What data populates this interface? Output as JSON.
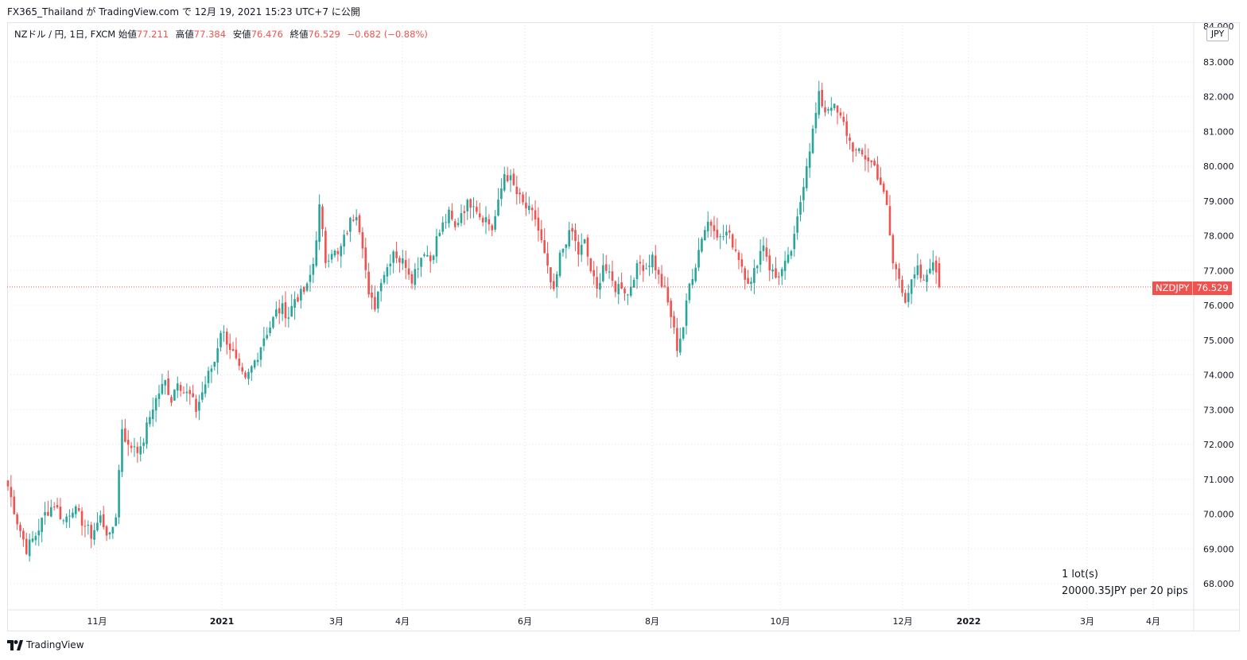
{
  "header": {
    "publisher": "FX365_Thailand",
    "platform": "TradingView.com",
    "date_text": "12月 19, 2021 15:23 UTC+7",
    "particle_ga": "が",
    "particle_de": "で",
    "publish_suffix": "に公開"
  },
  "legend": {
    "symbol_desc": "NZドル / 円, 1日, FXCM",
    "open_label": "始値",
    "open_value": "77.211",
    "high_label": "高値",
    "high_value": "77.384",
    "low_label": "安値",
    "low_value": "76.476",
    "close_label": "終値",
    "close_value": "76.529",
    "change": "−0.682 (−0.88%)"
  },
  "price_scale": {
    "currency": "JPY",
    "top_label_partial": "84.000"
  },
  "price_tag": {
    "symbol": "NZDJPY",
    "value": "76.529"
  },
  "lot_info": {
    "lots": "1 lot(s)",
    "pip_value": "20000.35JPY per 20 pips"
  },
  "footer": {
    "brand": "TradingView"
  },
  "colors": {
    "up": "#26a69a",
    "down": "#ef5350",
    "grid": "#e0e3eb",
    "text": "#131722"
  },
  "chart_data": {
    "type": "candlestick",
    "symbol": "NZDJPY",
    "timeframe": "1D",
    "ylim": [
      67.5,
      84.2
    ],
    "y_ticks": [
      "68.000",
      "69.000",
      "70.000",
      "71.000",
      "72.000",
      "73.000",
      "74.000",
      "75.000",
      "76.000",
      "77.000",
      "78.000",
      "79.000",
      "80.000",
      "81.000",
      "82.000",
      "83.000"
    ],
    "x_ticks": [
      "11月",
      "2021",
      "3月",
      "4月",
      "6月",
      "8月",
      "10月",
      "12月",
      "2022",
      "3月",
      "4月"
    ],
    "last_price": 76.529,
    "close_path": [
      [
        0,
        70.8
      ],
      [
        3,
        69.8
      ],
      [
        6,
        69.0
      ],
      [
        9,
        69.4
      ],
      [
        12,
        70.0
      ],
      [
        15,
        70.3
      ],
      [
        18,
        69.8
      ],
      [
        21,
        70.2
      ],
      [
        24,
        69.8
      ],
      [
        27,
        69.4
      ],
      [
        30,
        69.9
      ],
      [
        33,
        69.3
      ],
      [
        35,
        70.0
      ],
      [
        37,
        72.5
      ],
      [
        39,
        71.9
      ],
      [
        41,
        72.0
      ],
      [
        43,
        71.8
      ],
      [
        45,
        72.5
      ],
      [
        47,
        73.1
      ],
      [
        49,
        73.5
      ],
      [
        51,
        73.8
      ],
      [
        53,
        73.3
      ],
      [
        55,
        73.9
      ],
      [
        57,
        73.5
      ],
      [
        59,
        73.4
      ],
      [
        61,
        73.0
      ],
      [
        63,
        73.5
      ],
      [
        65,
        74.0
      ],
      [
        67,
        74.4
      ],
      [
        69,
        75.3
      ],
      [
        71,
        75.0
      ],
      [
        73,
        74.6
      ],
      [
        75,
        74.1
      ],
      [
        77,
        73.8
      ],
      [
        79,
        74.2
      ],
      [
        81,
        74.6
      ],
      [
        83,
        75.1
      ],
      [
        85,
        75.4
      ],
      [
        87,
        75.8
      ],
      [
        89,
        75.9
      ],
      [
        91,
        75.7
      ],
      [
        93,
        76.2
      ],
      [
        95,
        76.3
      ],
      [
        97,
        76.5
      ],
      [
        99,
        77.2
      ],
      [
        101,
        78.8
      ],
      [
        103,
        77.3
      ],
      [
        105,
        77.6
      ],
      [
        107,
        77.4
      ],
      [
        109,
        77.9
      ],
      [
        111,
        78.4
      ],
      [
        113,
        78.7
      ],
      [
        115,
        77.8
      ],
      [
        117,
        76.2
      ],
      [
        119,
        76.0
      ],
      [
        121,
        76.8
      ],
      [
        123,
        77.1
      ],
      [
        125,
        77.6
      ],
      [
        127,
        77.3
      ],
      [
        129,
        77.2
      ],
      [
        131,
        76.8
      ],
      [
        133,
        77.2
      ],
      [
        135,
        77.6
      ],
      [
        137,
        77.3
      ],
      [
        139,
        77.9
      ],
      [
        141,
        78.3
      ],
      [
        143,
        78.6
      ],
      [
        145,
        78.2
      ],
      [
        147,
        78.7
      ],
      [
        149,
        78.9
      ],
      [
        151,
        79.0
      ],
      [
        153,
        78.6
      ],
      [
        155,
        78.5
      ],
      [
        157,
        78.2
      ],
      [
        159,
        78.9
      ],
      [
        161,
        79.8
      ],
      [
        163,
        79.6
      ],
      [
        165,
        79.2
      ],
      [
        167,
        78.9
      ],
      [
        169,
        78.7
      ],
      [
        171,
        78.5
      ],
      [
        173,
        77.8
      ],
      [
        175,
        77.0
      ],
      [
        177,
        76.3
      ],
      [
        179,
        77.4
      ],
      [
        181,
        77.9
      ],
      [
        183,
        78.1
      ],
      [
        185,
        77.5
      ],
      [
        187,
        77.8
      ],
      [
        189,
        77.0
      ],
      [
        191,
        76.4
      ],
      [
        193,
        77.2
      ],
      [
        195,
        76.8
      ],
      [
        197,
        76.5
      ],
      [
        199,
        76.6
      ],
      [
        201,
        76.3
      ],
      [
        203,
        76.9
      ],
      [
        205,
        77.2
      ],
      [
        207,
        77.1
      ],
      [
        209,
        77.4
      ],
      [
        211,
        76.8
      ],
      [
        213,
        76.4
      ],
      [
        215,
        75.7
      ],
      [
        217,
        74.8
      ],
      [
        219,
        75.4
      ],
      [
        221,
        76.6
      ],
      [
        223,
        77.2
      ],
      [
        225,
        78.0
      ],
      [
        227,
        78.4
      ],
      [
        229,
        78.3
      ],
      [
        231,
        77.9
      ],
      [
        233,
        78.1
      ],
      [
        235,
        77.8
      ],
      [
        237,
        77.4
      ],
      [
        239,
        76.9
      ],
      [
        241,
        76.6
      ],
      [
        243,
        77.3
      ],
      [
        245,
        77.8
      ],
      [
        247,
        77.1
      ],
      [
        249,
        76.8
      ],
      [
        251,
        77.0
      ],
      [
        253,
        77.3
      ],
      [
        255,
        77.9
      ],
      [
        257,
        79.0
      ],
      [
        259,
        80.1
      ],
      [
        261,
        81.0
      ],
      [
        263,
        82.0
      ],
      [
        265,
        81.6
      ],
      [
        267,
        81.8
      ],
      [
        269,
        81.5
      ],
      [
        271,
        81.2
      ],
      [
        273,
        80.7
      ],
      [
        275,
        80.4
      ],
      [
        277,
        80.3
      ],
      [
        279,
        80.2
      ],
      [
        281,
        80.0
      ],
      [
        283,
        79.5
      ],
      [
        285,
        78.8
      ],
      [
        287,
        77.2
      ],
      [
        289,
        76.8
      ],
      [
        291,
        76.2
      ],
      [
        293,
        76.6
      ],
      [
        295,
        77.0
      ],
      [
        297,
        76.6
      ],
      [
        299,
        77.2
      ],
      [
        301,
        77.0
      ],
      [
        302,
        76.5
      ]
    ]
  }
}
